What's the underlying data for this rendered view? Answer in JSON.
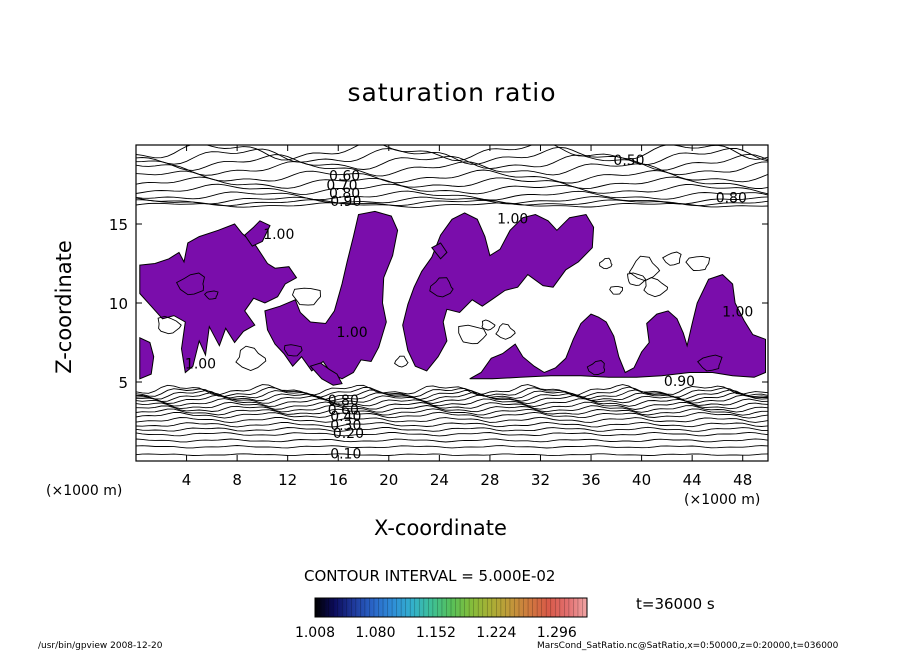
{
  "chart_data": {
    "type": "contour",
    "title": "saturation ratio",
    "xlabel": "X-coordinate",
    "ylabel": "Z-coordinate",
    "x_unit_left": "(×1000 m)",
    "x_unit_right": "(×1000 m)",
    "xlim": [
      0,
      50
    ],
    "ylim": [
      0,
      20
    ],
    "x_ticks": [
      4,
      8,
      12,
      16,
      20,
      24,
      28,
      32,
      36,
      40,
      44,
      48
    ],
    "y_ticks": [
      5,
      10,
      15
    ],
    "contour_labels": [
      {
        "text": "0.50",
        "x": 39.0,
        "y": 19.0
      },
      {
        "text": "0.60",
        "x": 16.5,
        "y": 18.0
      },
      {
        "text": "0.70",
        "x": 16.3,
        "y": 17.4
      },
      {
        "text": "0.80",
        "x": 16.5,
        "y": 16.9
      },
      {
        "text": "0.90",
        "x": 16.6,
        "y": 16.4
      },
      {
        "text": "0.80",
        "x": 47.1,
        "y": 16.6
      },
      {
        "text": "1.00",
        "x": 11.3,
        "y": 14.3
      },
      {
        "text": "1.00",
        "x": 29.8,
        "y": 15.3
      },
      {
        "text": "1.00",
        "x": 17.1,
        "y": 8.1
      },
      {
        "text": "1.00",
        "x": 5.1,
        "y": 6.1
      },
      {
        "text": "1.00",
        "x": 47.6,
        "y": 9.4
      },
      {
        "text": "0.90",
        "x": 43.0,
        "y": 5.0
      },
      {
        "text": "0.80",
        "x": 16.4,
        "y": 3.8
      },
      {
        "text": "0.60",
        "x": 16.4,
        "y": 3.2
      },
      {
        "text": "0.40",
        "x": 16.6,
        "y": 2.8
      },
      {
        "text": "0.30",
        "x": 16.6,
        "y": 2.2
      },
      {
        "text": "0.20",
        "x": 16.8,
        "y": 1.7
      },
      {
        "text": "0.10",
        "x": 16.6,
        "y": 0.4
      }
    ],
    "contour_interval_text": "CONTOUR INTERVAL = 5.000E-02",
    "time_text": "t=36000 s",
    "colorbar": {
      "min": 1.008,
      "max": 1.332,
      "tick_labels": [
        "1.008",
        "1.080",
        "1.152",
        "1.224",
        "1.296"
      ],
      "tick_values": [
        1.008,
        1.08,
        1.152,
        1.224,
        1.296
      ],
      "colors": [
        "#000000",
        "#0c0c5c",
        "#1f3a9c",
        "#2a66c8",
        "#2f8ed8",
        "#33b0cc",
        "#3ec096",
        "#56c05a",
        "#82bd3c",
        "#a8b035",
        "#c09a3a",
        "#cf7a3e",
        "#d85a48",
        "#e26f6f",
        "#f0a5a5"
      ]
    },
    "fill_color": "#7a0dab"
  },
  "footer": {
    "left": "/usr/bin/gpview   2008-12-20",
    "right": "MarsCond_SatRatio.nc@SatRatio,x=0:50000,z=0:20000,t=036000"
  }
}
